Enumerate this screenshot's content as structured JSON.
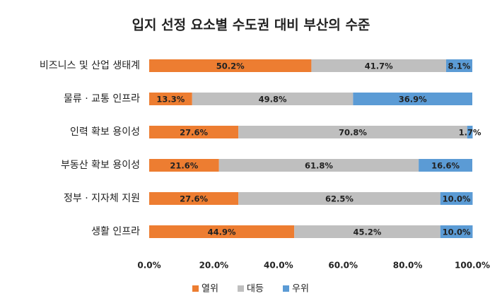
{
  "chart_data": {
    "type": "stacked_barh",
    "title": "입지 선정 요소별 수도권 대비 부산의 수준",
    "categories": [
      "비즈니스 및 산업 생태계",
      "물류 · 교통 인프라",
      "인력 확보 용이성",
      "부동산 확보 용이성",
      "정부 · 지자체 지원",
      "생활 인프라"
    ],
    "series": [
      {
        "name": "열위",
        "color": "#ed7d31",
        "values": [
          50.2,
          13.3,
          27.6,
          21.6,
          27.6,
          44.9
        ],
        "value_labels": [
          "50.2%",
          "13.3%",
          "27.6%",
          "21.6%",
          "27.6%",
          "44.9%"
        ]
      },
      {
        "name": "대등",
        "color": "#bfbfbf",
        "values": [
          41.7,
          49.8,
          70.8,
          61.8,
          62.5,
          45.2
        ],
        "value_labels": [
          "41.7%",
          "49.8%",
          "70.8%",
          "61.8%",
          "62.5%",
          "45.2%"
        ]
      },
      {
        "name": "우위",
        "color": "#5b9bd5",
        "values": [
          8.1,
          36.9,
          1.7,
          16.6,
          10.0,
          10.0
        ],
        "value_labels": [
          "8.1%",
          "36.9%",
          "1.7%",
          "16.6%",
          "10.0%",
          "10.0%"
        ]
      }
    ],
    "xlim": [
      0,
      100
    ],
    "xticks": [
      {
        "value": 0,
        "label": "0.0%"
      },
      {
        "value": 20,
        "label": "20.0%"
      },
      {
        "value": 40,
        "label": "40.0%"
      },
      {
        "value": 60,
        "label": "60.0%"
      },
      {
        "value": 80,
        "label": "80.0%"
      },
      {
        "value": 100,
        "label": "100.0%"
      }
    ],
    "legend": "bottom"
  }
}
